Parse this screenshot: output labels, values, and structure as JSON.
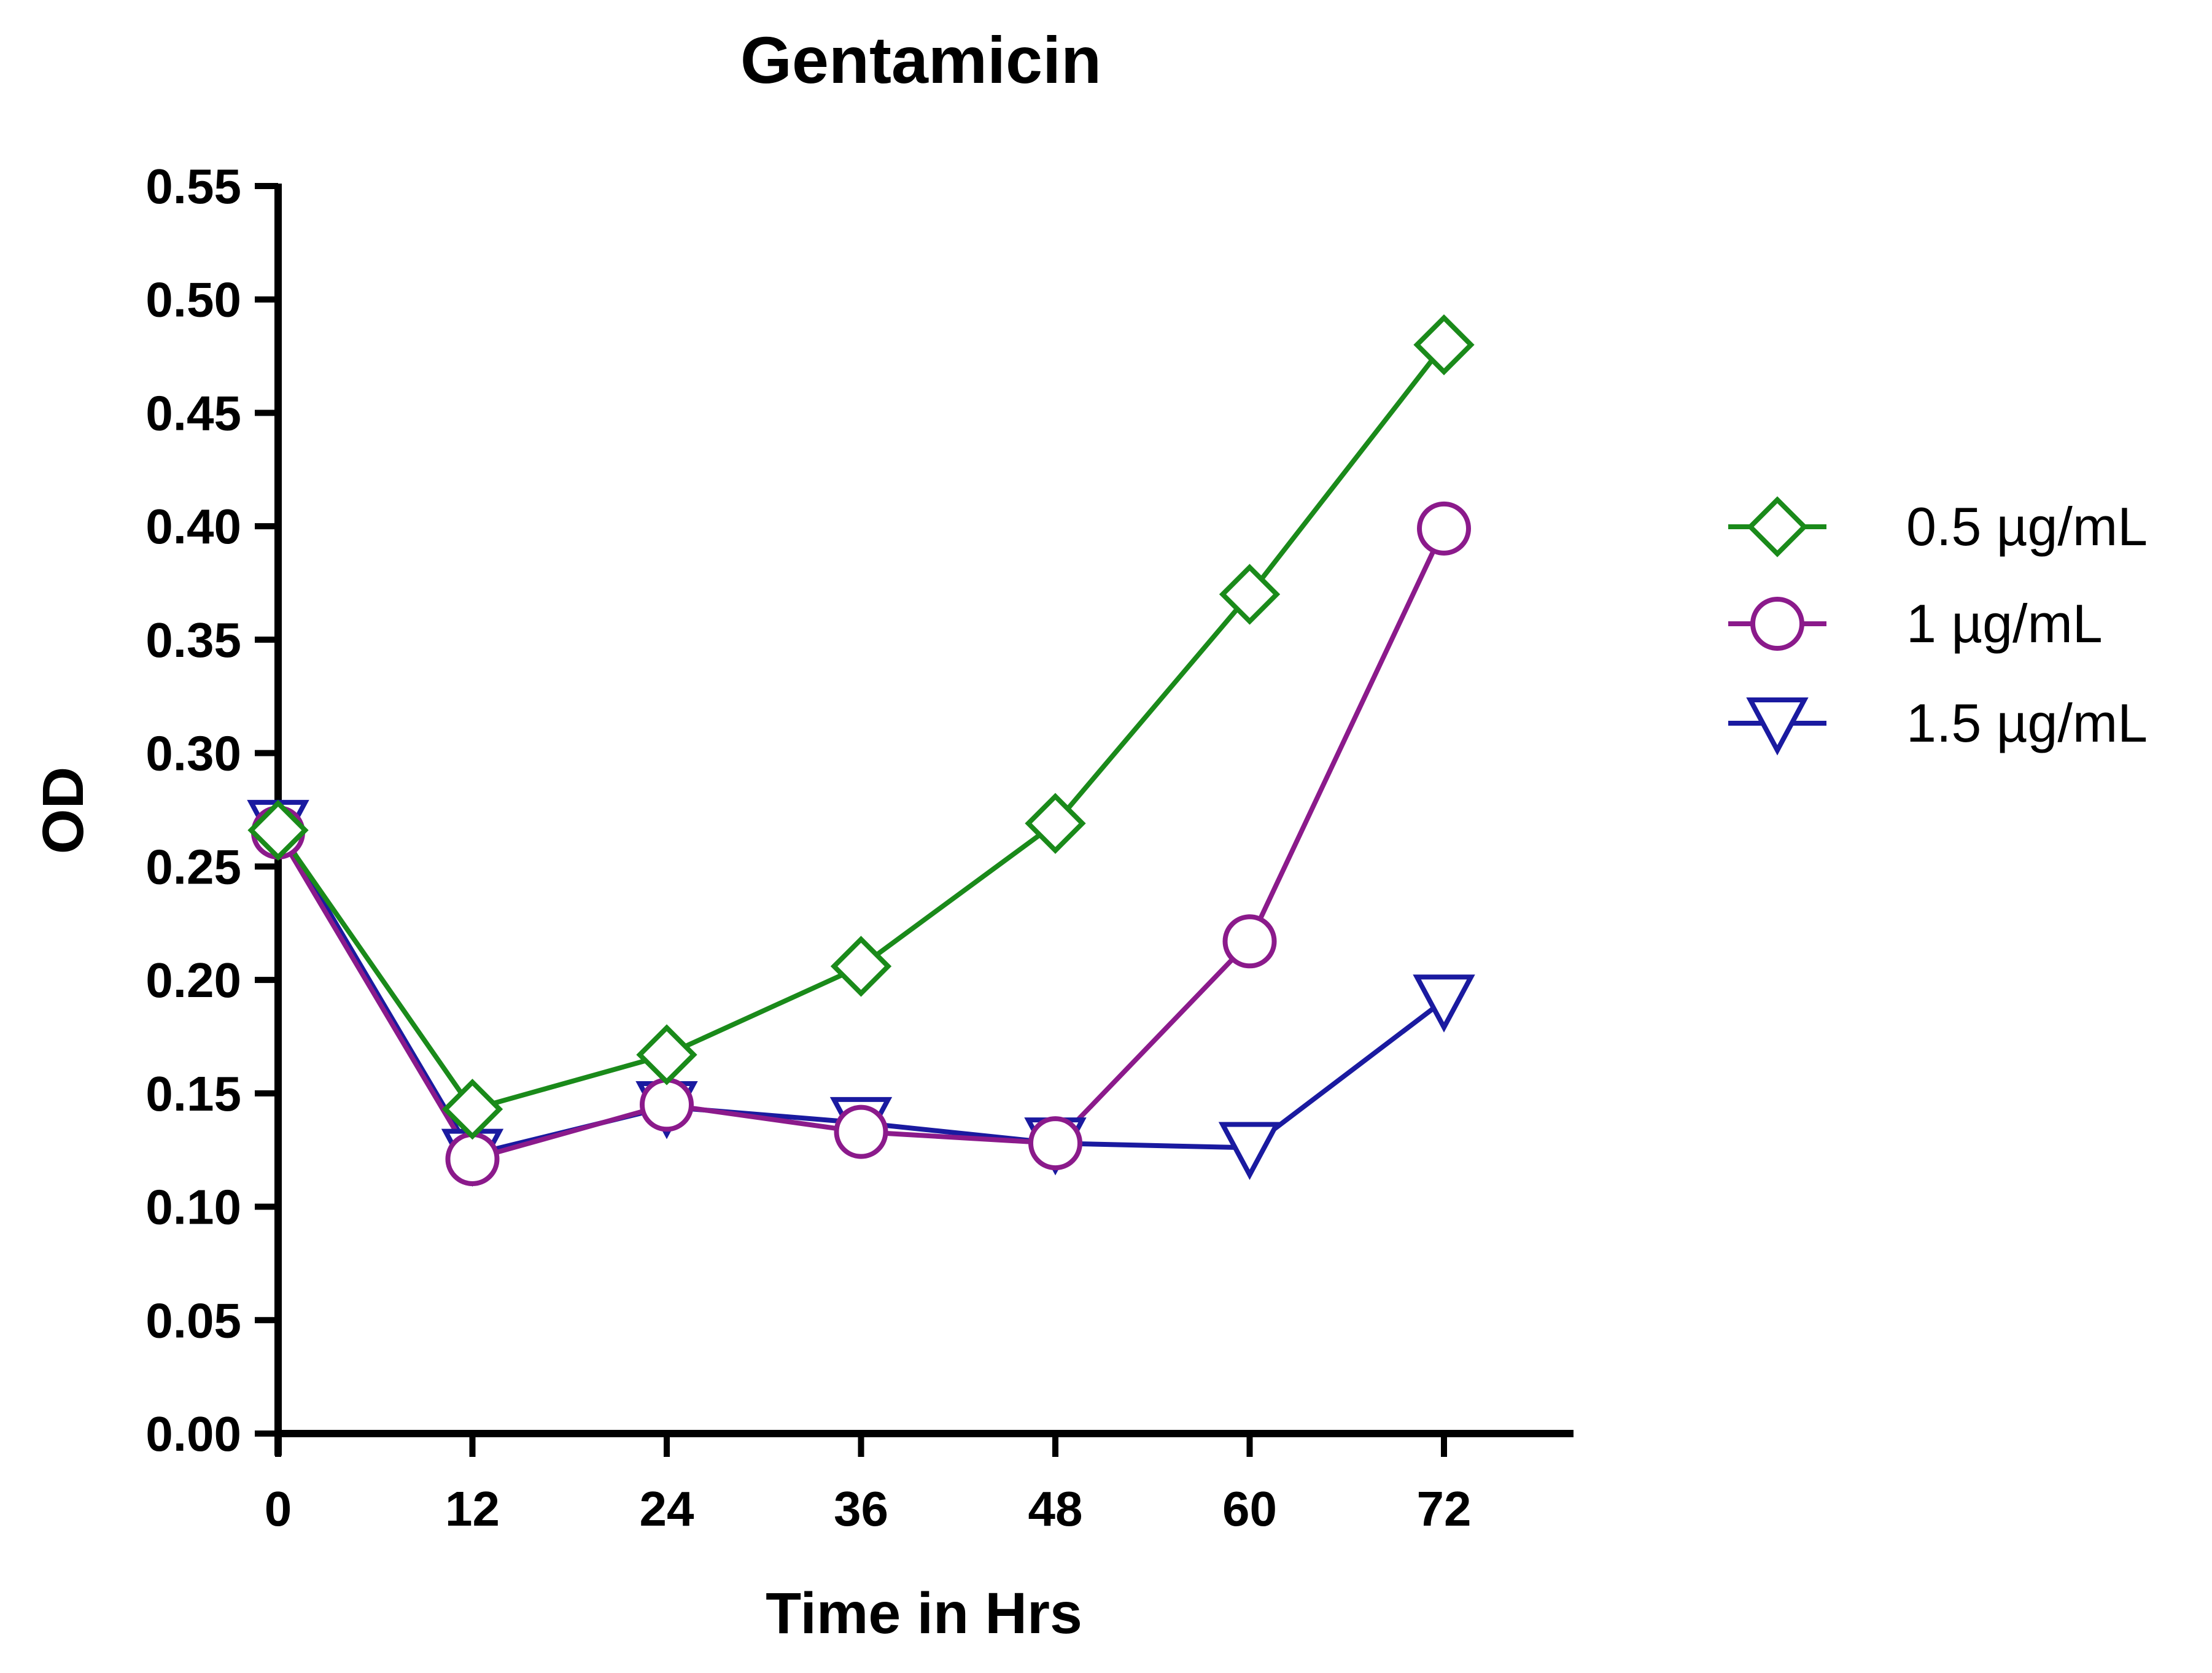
{
  "chart_data": {
    "type": "line",
    "title": "Gentamicin",
    "xlabel": "Time in Hrs",
    "ylabel": "OD",
    "x": [
      0,
      12,
      24,
      36,
      48,
      60,
      72
    ],
    "x_tick_labels": [
      "0",
      "12",
      "24",
      "36",
      "48",
      "60",
      "72"
    ],
    "xlim": [
      0,
      80
    ],
    "ylim": [
      0,
      0.55
    ],
    "y_ticks": [
      0.0,
      0.05,
      0.1,
      0.15,
      0.2,
      0.25,
      0.3,
      0.35,
      0.4,
      0.45,
      0.5,
      0.55
    ],
    "y_tick_labels": [
      "0.00",
      "0.05",
      "0.10",
      "0.15",
      "0.20",
      "0.25",
      "0.30",
      "0.35",
      "0.40",
      "0.45",
      "0.50",
      "0.55"
    ],
    "grid": false,
    "legend_position": "right",
    "series": [
      {
        "name": "0.5 µg/mL",
        "marker": "diamond",
        "color": "#1a8a1a",
        "values": [
          0.266,
          0.143,
          0.167,
          0.206,
          0.269,
          0.37,
          0.48
        ]
      },
      {
        "name": "1 µg/mL",
        "marker": "circle",
        "color": "#8b1a8b",
        "values": [
          0.265,
          0.121,
          0.145,
          0.133,
          0.128,
          0.217,
          0.399
        ]
      },
      {
        "name": "1.5 µg/mL",
        "marker": "triangle-down",
        "color": "#1a1aa0",
        "values": [
          0.268,
          0.123,
          0.144,
          0.137,
          0.128,
          0.126,
          0.191
        ]
      }
    ]
  }
}
